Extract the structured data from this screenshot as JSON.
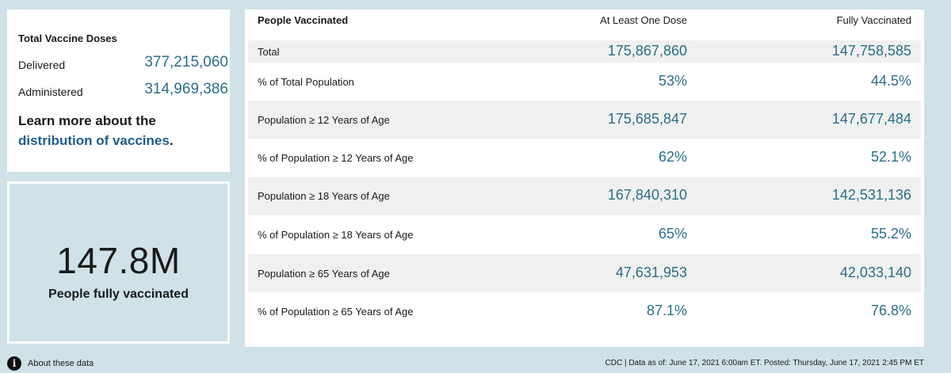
{
  "doses": {
    "title": "Total Vaccine Doses",
    "delivered_label": "Delivered",
    "delivered_value": "377,215,060",
    "administered_label": "Administered",
    "administered_value": "314,969,386",
    "learn_prefix": "Learn more about the",
    "learn_link": "distribution of vaccines",
    "learn_suffix": "."
  },
  "summary": {
    "value": "147.8M",
    "caption": "People fully vaccinated"
  },
  "table": {
    "headers": {
      "label": "People Vaccinated",
      "at_least_one": "At Least One Dose",
      "fully": "Fully Vaccinated"
    },
    "rows": [
      {
        "label": "Total",
        "at_least_one": "175,867,860",
        "fully": "147,758,585"
      },
      {
        "label": "% of Total Population",
        "at_least_one": "53%",
        "fully": "44.5%"
      },
      {
        "label": "Population ≥ 12 Years of Age",
        "at_least_one": "175,685,847",
        "fully": "147,677,484"
      },
      {
        "label": "% of Population ≥ 12 Years of Age",
        "at_least_one": "62%",
        "fully": "52.1%"
      },
      {
        "label": "Population ≥ 18 Years of Age",
        "at_least_one": "167,840,310",
        "fully": "142,531,136"
      },
      {
        "label": "% of Population ≥ 18 Years of Age",
        "at_least_one": "65%",
        "fully": "55.2%"
      },
      {
        "label": "Population ≥ 65 Years of Age",
        "at_least_one": "47,631,953",
        "fully": "42,033,140"
      },
      {
        "label": "% of Population ≥ 65 Years of Age",
        "at_least_one": "87.1%",
        "fully": "76.8%"
      }
    ]
  },
  "footer": {
    "info_icon": "info-icon",
    "about_label": "About these data",
    "source_text": "CDC | Data as of: June 17, 2021 6:00am ET. Posted: Thursday, June 17, 2021 2:45 PM ET"
  },
  "colors": {
    "background": "#d0e2e8",
    "value_teal": "#2a6f88",
    "link_blue": "#1f5c8c",
    "row_shade": "#f0f0f0"
  }
}
